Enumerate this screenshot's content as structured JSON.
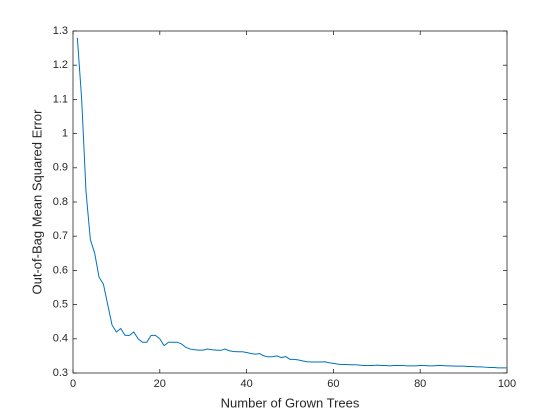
{
  "chart_data": {
    "type": "line",
    "x_label": "Number of Grown Trees",
    "y_label": "Out-of-Bag Mean Squared Error",
    "x": [
      1,
      2,
      3,
      4,
      5,
      6,
      7,
      8,
      9,
      10,
      11,
      12,
      13,
      14,
      15,
      16,
      17,
      18,
      19,
      20,
      21,
      22,
      23,
      24,
      25,
      26,
      27,
      28,
      29,
      30,
      31,
      32,
      33,
      34,
      35,
      36,
      37,
      38,
      39,
      40,
      41,
      42,
      43,
      44,
      45,
      46,
      47,
      48,
      49,
      50,
      51,
      52,
      53,
      54,
      55,
      56,
      57,
      58,
      59,
      60,
      61,
      62,
      63,
      64,
      65,
      66,
      67,
      68,
      69,
      70,
      71,
      72,
      73,
      74,
      75,
      76,
      77,
      78,
      79,
      80,
      81,
      82,
      83,
      84,
      85,
      86,
      87,
      88,
      89,
      90,
      91,
      92,
      93,
      94,
      95,
      96,
      97,
      98,
      99,
      100
    ],
    "series": [
      {
        "color": "#0072bd",
        "values": [
          1.28,
          1.1,
          0.83,
          0.69,
          0.65,
          0.58,
          0.56,
          0.5,
          0.44,
          0.42,
          0.43,
          0.41,
          0.41,
          0.42,
          0.4,
          0.39,
          0.39,
          0.41,
          0.41,
          0.4,
          0.38,
          0.39,
          0.39,
          0.39,
          0.385,
          0.375,
          0.37,
          0.368,
          0.367,
          0.367,
          0.37,
          0.368,
          0.367,
          0.366,
          0.37,
          0.365,
          0.363,
          0.362,
          0.362,
          0.36,
          0.357,
          0.355,
          0.357,
          0.35,
          0.347,
          0.348,
          0.35,
          0.345,
          0.348,
          0.34,
          0.34,
          0.338,
          0.335,
          0.333,
          0.332,
          0.332,
          0.332,
          0.333,
          0.33,
          0.328,
          0.326,
          0.325,
          0.325,
          0.324,
          0.324,
          0.323,
          0.322,
          0.322,
          0.322,
          0.323,
          0.322,
          0.322,
          0.321,
          0.322,
          0.322,
          0.322,
          0.321,
          0.321,
          0.321,
          0.322,
          0.322,
          0.321,
          0.321,
          0.322,
          0.322,
          0.321,
          0.321,
          0.32,
          0.32,
          0.32,
          0.319,
          0.319,
          0.318,
          0.318,
          0.317,
          0.316,
          0.316,
          0.315,
          0.315,
          0.315
        ]
      }
    ],
    "xlim": [
      0,
      100
    ],
    "xticks": [
      0,
      20,
      40,
      60,
      80,
      100
    ],
    "ylim": [
      0.3,
      1.3
    ],
    "yticks": [
      0.3,
      0.4,
      0.5,
      0.6,
      0.7,
      0.8,
      0.9,
      1,
      1.1,
      1.2,
      1.3
    ],
    "grid": false
  }
}
